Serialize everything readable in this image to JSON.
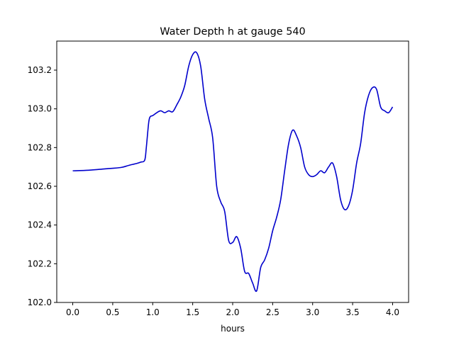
{
  "chart_data": {
    "type": "line",
    "title": "Water Depth h at gauge 540",
    "xlabel": "hours",
    "ylabel": "",
    "xlim": [
      -0.2,
      4.2
    ],
    "ylim": [
      102.0,
      103.35
    ],
    "grid": false,
    "xticks": [
      0.0,
      0.5,
      1.0,
      1.5,
      2.0,
      2.5,
      3.0,
      3.5,
      4.0
    ],
    "xtick_labels": [
      "0.0",
      "0.5",
      "1.0",
      "1.5",
      "2.0",
      "2.5",
      "3.0",
      "3.5",
      "4.0"
    ],
    "yticks": [
      102.0,
      102.2,
      102.4,
      102.6,
      102.8,
      103.0,
      103.2
    ],
    "ytick_labels": [
      "102.0",
      "102.2",
      "102.4",
      "102.6",
      "102.8",
      "103.0",
      "103.2"
    ],
    "series": [
      {
        "color": "#0000cc",
        "x": [
          0.0,
          0.2,
          0.4,
          0.6,
          0.7,
          0.8,
          0.85,
          0.9,
          0.92,
          0.95,
          0.97,
          1.0,
          1.05,
          1.1,
          1.15,
          1.2,
          1.25,
          1.3,
          1.35,
          1.4,
          1.45,
          1.5,
          1.55,
          1.6,
          1.65,
          1.7,
          1.75,
          1.8,
          1.85,
          1.9,
          1.95,
          2.0,
          2.05,
          2.1,
          2.15,
          2.2,
          2.25,
          2.3,
          2.35,
          2.4,
          2.45,
          2.5,
          2.55,
          2.6,
          2.65,
          2.7,
          2.75,
          2.8,
          2.85,
          2.9,
          2.95,
          3.0,
          3.05,
          3.1,
          3.15,
          3.2,
          3.25,
          3.3,
          3.35,
          3.4,
          3.45,
          3.5,
          3.55,
          3.6,
          3.65,
          3.7,
          3.75,
          3.8,
          3.85,
          3.9,
          3.95,
          4.0
        ],
        "y": [
          102.68,
          102.683,
          102.69,
          102.697,
          102.708,
          102.718,
          102.725,
          102.735,
          102.8,
          102.93,
          102.96,
          102.965,
          102.98,
          102.99,
          102.98,
          102.99,
          102.985,
          103.02,
          103.06,
          103.12,
          103.22,
          103.28,
          103.29,
          103.22,
          103.05,
          102.95,
          102.85,
          102.6,
          102.52,
          102.47,
          102.32,
          102.31,
          102.34,
          102.28,
          102.16,
          102.15,
          102.1,
          102.06,
          102.18,
          102.22,
          102.28,
          102.37,
          102.44,
          102.53,
          102.68,
          102.82,
          102.89,
          102.86,
          102.8,
          102.7,
          102.66,
          102.65,
          102.66,
          102.68,
          102.67,
          102.7,
          102.72,
          102.65,
          102.53,
          102.48,
          102.5,
          102.58,
          102.72,
          102.82,
          102.98,
          103.07,
          103.11,
          103.1,
          103.01,
          102.99,
          102.98,
          103.01
        ]
      }
    ]
  }
}
